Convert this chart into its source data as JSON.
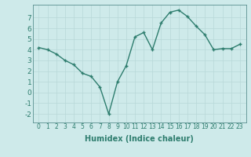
{
  "x": [
    0,
    1,
    2,
    3,
    4,
    5,
    6,
    7,
    8,
    9,
    10,
    11,
    12,
    13,
    14,
    15,
    16,
    17,
    18,
    19,
    20,
    21,
    22,
    23
  ],
  "y": [
    4.2,
    4.0,
    3.6,
    3.0,
    2.6,
    1.8,
    1.5,
    0.5,
    -2.0,
    1.0,
    2.5,
    5.2,
    5.6,
    4.0,
    6.5,
    7.5,
    7.7,
    7.1,
    6.2,
    5.4,
    4.0,
    4.1,
    4.1,
    4.5
  ],
  "line_color": "#2e7d6e",
  "marker": "+",
  "marker_size": 3.5,
  "marker_edge_width": 1.0,
  "line_width": 1.0,
  "xlabel": "Humidex (Indice chaleur)",
  "xlabel_fontsize": 7,
  "xlabel_fontweight": "bold",
  "xtick_labels": [
    "0",
    "1",
    "2",
    "3",
    "4",
    "5",
    "6",
    "7",
    "8",
    "9",
    "10",
    "11",
    "12",
    "13",
    "14",
    "15",
    "16",
    "17",
    "18",
    "19",
    "20",
    "21",
    "22",
    "23"
  ],
  "ylim": [
    -2.8,
    8.2
  ],
  "yticks": [
    -2,
    -1,
    0,
    1,
    2,
    3,
    4,
    5,
    6,
    7
  ],
  "ytick_fontsize": 6.5,
  "xtick_fontsize": 5.5,
  "bg_color": "#ceeaea",
  "grid_color": "#b8d8d8",
  "spine_color": "#5a9090",
  "tick_color": "#2e7d6e"
}
